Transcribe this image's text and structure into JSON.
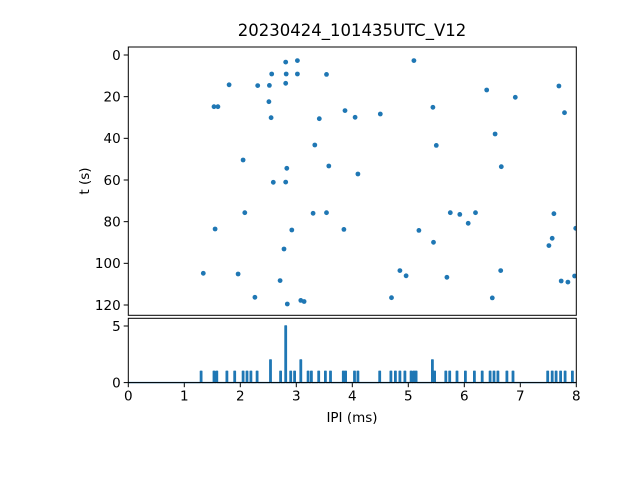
{
  "figure": {
    "title": "20230424_101435UTC_V12",
    "background": "#ffffff",
    "accent_color": "#1f77b4",
    "axis_color": "#000000",
    "xlabel": "IPI (ms)",
    "ylabel_top": "t (s)"
  },
  "chart_data": [
    {
      "type": "scatter",
      "title": "20230424_101435UTC_V12",
      "xlabel": "IPI (ms)",
      "ylabel": "t (s)",
      "xlim": [
        0,
        8
      ],
      "ylim": [
        125,
        -4
      ],
      "y_axis_inverted": true,
      "grid": false,
      "xticks": [
        0,
        1,
        2,
        3,
        4,
        5,
        6,
        7,
        8
      ],
      "yticks": [
        0,
        20,
        40,
        60,
        80,
        100,
        120
      ],
      "marker_color": "#1f77b4",
      "points": [
        [
          2.81,
          3.4
        ],
        [
          3.02,
          2.7
        ],
        [
          5.1,
          2.7
        ],
        [
          2.56,
          9.1
        ],
        [
          2.82,
          9.1
        ],
        [
          3.02,
          9.1
        ],
        [
          3.54,
          9.3
        ],
        [
          2.81,
          13.6
        ],
        [
          1.8,
          14.3
        ],
        [
          2.31,
          14.7
        ],
        [
          2.52,
          14.6
        ],
        [
          7.69,
          14.9
        ],
        [
          6.4,
          16.8
        ],
        [
          6.91,
          20.3
        ],
        [
          2.51,
          22.4
        ],
        [
          1.53,
          24.8
        ],
        [
          1.6,
          24.8
        ],
        [
          5.44,
          25.1
        ],
        [
          3.87,
          26.7
        ],
        [
          7.79,
          27.7
        ],
        [
          4.5,
          28.3
        ],
        [
          4.05,
          29.9
        ],
        [
          2.55,
          30.1
        ],
        [
          3.41,
          30.6
        ],
        [
          6.55,
          37.9
        ],
        [
          3.33,
          43.2
        ],
        [
          5.5,
          43.4
        ],
        [
          2.05,
          50.4
        ],
        [
          3.58,
          53.3
        ],
        [
          6.66,
          53.6
        ],
        [
          2.83,
          54.4
        ],
        [
          4.1,
          57.1
        ],
        [
          2.59,
          61.1
        ],
        [
          2.81,
          61.0
        ],
        [
          2.08,
          75.7
        ],
        [
          3.3,
          76.0
        ],
        [
          3.54,
          75.7
        ],
        [
          5.75,
          75.7
        ],
        [
          5.92,
          76.5
        ],
        [
          6.2,
          75.7
        ],
        [
          7.6,
          76.2
        ],
        [
          6.07,
          80.8
        ],
        [
          1.55,
          83.5
        ],
        [
          2.92,
          84.0
        ],
        [
          3.85,
          83.7
        ],
        [
          5.19,
          84.2
        ],
        [
          7.99,
          83.2
        ],
        [
          7.57,
          88.0
        ],
        [
          5.45,
          89.9
        ],
        [
          7.51,
          91.5
        ],
        [
          2.78,
          93.1
        ],
        [
          4.85,
          103.5
        ],
        [
          6.65,
          103.5
        ],
        [
          1.34,
          104.8
        ],
        [
          1.96,
          105.1
        ],
        [
          4.96,
          106.0
        ],
        [
          5.69,
          106.7
        ],
        [
          7.97,
          106.1
        ],
        [
          2.71,
          108.3
        ],
        [
          7.73,
          108.5
        ],
        [
          7.85,
          109.0
        ],
        [
          2.26,
          116.3
        ],
        [
          4.7,
          116.5
        ],
        [
          6.5,
          116.6
        ],
        [
          3.08,
          117.8
        ],
        [
          3.14,
          118.3
        ],
        [
          2.84,
          119.5
        ]
      ]
    },
    {
      "type": "line",
      "title": "",
      "xlabel": "IPI (ms)",
      "ylabel": "",
      "xlim": [
        0,
        8
      ],
      "ylim": [
        0,
        5.7
      ],
      "grid": false,
      "xticks": [
        0,
        1,
        2,
        3,
        4,
        5,
        6,
        7,
        8
      ],
      "yticks": [
        0,
        5
      ],
      "line_color": "#1f77b4",
      "baseline": 0,
      "spikes": [
        [
          1.3,
          1
        ],
        [
          1.53,
          1
        ],
        [
          1.58,
          1
        ],
        [
          1.76,
          1
        ],
        [
          1.9,
          1
        ],
        [
          2.05,
          1
        ],
        [
          2.12,
          1
        ],
        [
          2.19,
          1
        ],
        [
          2.3,
          1
        ],
        [
          2.54,
          2
        ],
        [
          2.72,
          1
        ],
        [
          2.81,
          5
        ],
        [
          2.9,
          1
        ],
        [
          2.97,
          1
        ],
        [
          3.08,
          2
        ],
        [
          3.21,
          1
        ],
        [
          3.27,
          1
        ],
        [
          3.4,
          1
        ],
        [
          3.52,
          1
        ],
        [
          3.61,
          1
        ],
        [
          3.84,
          1
        ],
        [
          3.88,
          1
        ],
        [
          4.04,
          1
        ],
        [
          4.1,
          1
        ],
        [
          4.49,
          1
        ],
        [
          4.69,
          1
        ],
        [
          4.77,
          1
        ],
        [
          4.85,
          1
        ],
        [
          4.94,
          1
        ],
        [
          5.05,
          1
        ],
        [
          5.1,
          1
        ],
        [
          5.14,
          1
        ],
        [
          5.43,
          2
        ],
        [
          5.47,
          1
        ],
        [
          5.67,
          1
        ],
        [
          5.74,
          1
        ],
        [
          5.87,
          1
        ],
        [
          6.02,
          1
        ],
        [
          6.18,
          1
        ],
        [
          6.32,
          1
        ],
        [
          6.46,
          1
        ],
        [
          6.53,
          1
        ],
        [
          6.6,
          1
        ],
        [
          6.76,
          1
        ],
        [
          6.87,
          1
        ],
        [
          7.49,
          1
        ],
        [
          7.57,
          1
        ],
        [
          7.64,
          1
        ],
        [
          7.72,
          1
        ],
        [
          7.8,
          1
        ],
        [
          7.93,
          1
        ]
      ]
    }
  ]
}
